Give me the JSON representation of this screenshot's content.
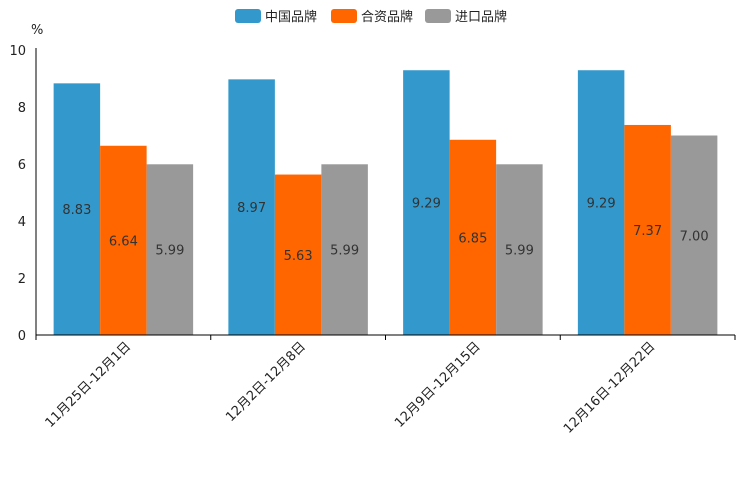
{
  "chart_data": {
    "type": "bar",
    "title": "",
    "xlabel": "",
    "ylabel": "%",
    "ylim": [
      0,
      10
    ],
    "yticks": [
      0,
      2,
      4,
      6,
      8,
      10
    ],
    "grid": false,
    "legend_position": "top-center",
    "categories": [
      "11月25日-12月1日",
      "12月2日-12月8日",
      "12月9日-12月15日",
      "12月16日-12月22日"
    ],
    "series": [
      {
        "name": "中国品牌",
        "color": "#3399cc",
        "values": [
          8.83,
          8.97,
          9.29,
          9.29
        ],
        "labels": [
          "8.83",
          "8.97",
          "9.29",
          "9.29"
        ]
      },
      {
        "name": "合资品牌",
        "color": "#ff6600",
        "values": [
          6.64,
          5.63,
          6.85,
          7.37
        ],
        "labels": [
          "6.64",
          "5.63",
          "6.85",
          "7.37"
        ]
      },
      {
        "name": "进口品牌",
        "color": "#999999",
        "values": [
          5.99,
          5.99,
          5.99,
          7.0
        ],
        "labels": [
          "5.99",
          "5.99",
          "5.99",
          "7.00"
        ]
      }
    ]
  }
}
